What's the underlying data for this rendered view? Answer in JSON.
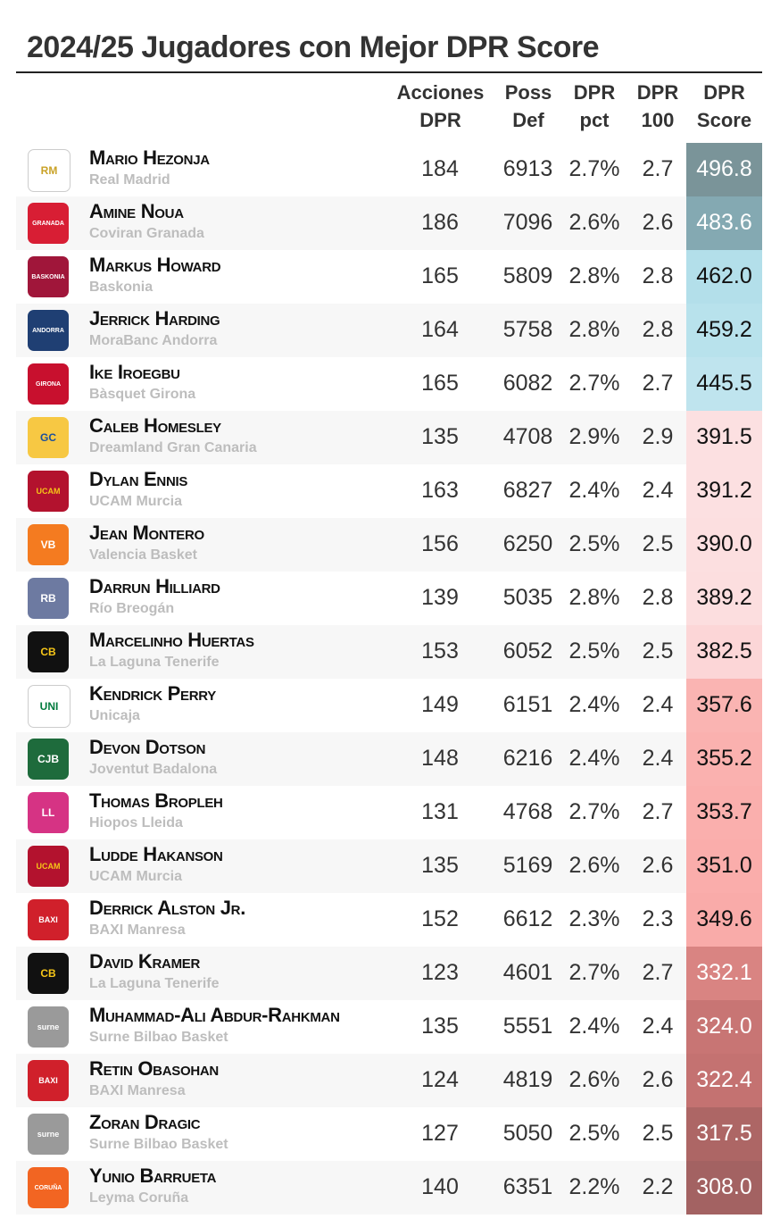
{
  "title": "2024/25 Jugadores con Mejor DPR Score",
  "columns": [
    {
      "line1": "Acciones",
      "line2": "DPR"
    },
    {
      "line1": "Poss",
      "line2": "Def"
    },
    {
      "line1": "DPR",
      "line2": "pct"
    },
    {
      "line1": "DPR",
      "line2": "100"
    },
    {
      "line1": "DPR",
      "line2": "Score"
    }
  ],
  "rows": [
    {
      "player": "Mario Hezonja",
      "team": "Real Madrid",
      "acciones": "184",
      "poss": "6913",
      "pct": "2.7%",
      "per100": "2.7",
      "score": "496.8",
      "score_bg": "#7a9499",
      "score_fg": "#ffffff",
      "logo_color": "#ffffff",
      "logo_fg": "#c9a227",
      "logo_text": "RM"
    },
    {
      "player": "Amine Noua",
      "team": "Coviran Granada",
      "acciones": "186",
      "poss": "7096",
      "pct": "2.6%",
      "per100": "2.6",
      "score": "483.6",
      "score_bg": "#84a9b2",
      "score_fg": "#ffffff",
      "logo_color": "#d81e34",
      "logo_fg": "#ffffff",
      "logo_text": "GRANADA"
    },
    {
      "player": "Markus Howard",
      "team": "Baskonia",
      "acciones": "165",
      "poss": "5809",
      "pct": "2.8%",
      "per100": "2.8",
      "score": "462.0",
      "score_bg": "#b3dfea",
      "score_fg": "#111111",
      "logo_color": "#a0163a",
      "logo_fg": "#ffffff",
      "logo_text": "BASKONIA"
    },
    {
      "player": "Jerrick Harding",
      "team": "MoraBanc Andorra",
      "acciones": "164",
      "poss": "5758",
      "pct": "2.8%",
      "per100": "2.8",
      "score": "459.2",
      "score_bg": "#b8e2ec",
      "score_fg": "#111111",
      "logo_color": "#1f3f73",
      "logo_fg": "#ffffff",
      "logo_text": "ANDORRA"
    },
    {
      "player": "Ike Iroegbu",
      "team": "Bàsquet Girona",
      "acciones": "165",
      "poss": "6082",
      "pct": "2.7%",
      "per100": "2.7",
      "score": "445.5",
      "score_bg": "#bfe4ee",
      "score_fg": "#111111",
      "logo_color": "#c8102e",
      "logo_fg": "#ffffff",
      "logo_text": "GIRONA"
    },
    {
      "player": "Caleb Homesley",
      "team": "Dreamland Gran Canaria",
      "acciones": "135",
      "poss": "4708",
      "pct": "2.9%",
      "per100": "2.9",
      "score": "391.5",
      "score_bg": "#fce0e1",
      "score_fg": "#111111",
      "logo_color": "#f7c843",
      "logo_fg": "#1b4f9c",
      "logo_text": "GC"
    },
    {
      "player": "Dylan Ennis",
      "team": "UCAM Murcia",
      "acciones": "163",
      "poss": "6827",
      "pct": "2.4%",
      "per100": "2.4",
      "score": "391.2",
      "score_bg": "#fce0e1",
      "score_fg": "#111111",
      "logo_color": "#b3122e",
      "logo_fg": "#f5c518",
      "logo_text": "UCAM"
    },
    {
      "player": "Jean Montero",
      "team": "Valencia Basket",
      "acciones": "156",
      "poss": "6250",
      "pct": "2.5%",
      "per100": "2.5",
      "score": "390.0",
      "score_bg": "#fcdfe0",
      "score_fg": "#111111",
      "logo_color": "#f47b20",
      "logo_fg": "#ffffff",
      "logo_text": "VB"
    },
    {
      "player": "Darrun Hilliard",
      "team": "Río Breogán",
      "acciones": "139",
      "poss": "5035",
      "pct": "2.8%",
      "per100": "2.8",
      "score": "389.2",
      "score_bg": "#fcdedf",
      "score_fg": "#111111",
      "logo_color": "#6d7aa1",
      "logo_fg": "#ffffff",
      "logo_text": "RB"
    },
    {
      "player": "Marcelinho Huertas",
      "team": "La Laguna Tenerife",
      "acciones": "153",
      "poss": "6052",
      "pct": "2.5%",
      "per100": "2.5",
      "score": "382.5",
      "score_bg": "#fcd6d7",
      "score_fg": "#111111",
      "logo_color": "#111111",
      "logo_fg": "#f5c518",
      "logo_text": "CB"
    },
    {
      "player": "Kendrick Perry",
      "team": "Unicaja",
      "acciones": "149",
      "poss": "6151",
      "pct": "2.4%",
      "per100": "2.4",
      "score": "357.6",
      "score_bg": "#fab4b2",
      "score_fg": "#111111",
      "logo_color": "#ffffff",
      "logo_fg": "#007a3d",
      "logo_text": "UNI"
    },
    {
      "player": "Devon Dotson",
      "team": "Joventut Badalona",
      "acciones": "148",
      "poss": "6216",
      "pct": "2.4%",
      "per100": "2.4",
      "score": "355.2",
      "score_bg": "#fab1af",
      "score_fg": "#111111",
      "logo_color": "#1e6b3c",
      "logo_fg": "#ffffff",
      "logo_text": "CJB"
    },
    {
      "player": "Thomas Bropleh",
      "team": "Hiopos Lleida",
      "acciones": "131",
      "poss": "4768",
      "pct": "2.7%",
      "per100": "2.7",
      "score": "353.7",
      "score_bg": "#faafad",
      "score_fg": "#111111",
      "logo_color": "#d63384",
      "logo_fg": "#ffffff",
      "logo_text": "LL"
    },
    {
      "player": "Ludde Hakanson",
      "team": "UCAM Murcia",
      "acciones": "135",
      "poss": "5169",
      "pct": "2.6%",
      "per100": "2.6",
      "score": "351.0",
      "score_bg": "#faadab",
      "score_fg": "#111111",
      "logo_color": "#b3122e",
      "logo_fg": "#f5c518",
      "logo_text": "UCAM"
    },
    {
      "player": "Derrick Alston Jr.",
      "team": "BAXI Manresa",
      "acciones": "152",
      "poss": "6612",
      "pct": "2.3%",
      "per100": "2.3",
      "score": "349.6",
      "score_bg": "#f9aba9",
      "score_fg": "#111111",
      "logo_color": "#d0202b",
      "logo_fg": "#ffffff",
      "logo_text": "BAXI"
    },
    {
      "player": "David Kramer",
      "team": "La Laguna Tenerife",
      "acciones": "123",
      "poss": "4601",
      "pct": "2.7%",
      "per100": "2.7",
      "score": "332.1",
      "score_bg": "#d98482",
      "score_fg": "#ffffff",
      "logo_color": "#111111",
      "logo_fg": "#f5c518",
      "logo_text": "CB"
    },
    {
      "player": "Muhammad-Ali Abdur-Rahkman",
      "team": "Surne Bilbao Basket",
      "acciones": "135",
      "poss": "5551",
      "pct": "2.4%",
      "per100": "2.4",
      "score": "324.0",
      "score_bg": "#c87574",
      "score_fg": "#ffffff",
      "logo_color": "#9a9a9a",
      "logo_fg": "#ffffff",
      "logo_text": "surne"
    },
    {
      "player": "Retin Obasohan",
      "team": "BAXI Manresa",
      "acciones": "124",
      "poss": "4819",
      "pct": "2.6%",
      "per100": "2.6",
      "score": "322.4",
      "score_bg": "#c47271",
      "score_fg": "#ffffff",
      "logo_color": "#d0202b",
      "logo_fg": "#ffffff",
      "logo_text": "BAXI"
    },
    {
      "player": "Zoran Dragic",
      "team": "Surne Bilbao Basket",
      "acciones": "127",
      "poss": "5050",
      "pct": "2.5%",
      "per100": "2.5",
      "score": "317.5",
      "score_bg": "#ad6665",
      "score_fg": "#ffffff",
      "logo_color": "#9a9a9a",
      "logo_fg": "#ffffff",
      "logo_text": "surne"
    },
    {
      "player": "Yunio Barrueta",
      "team": "Leyma Coruña",
      "acciones": "140",
      "poss": "6351",
      "pct": "2.2%",
      "per100": "2.2",
      "score": "308.0",
      "score_bg": "#a36262",
      "score_fg": "#ffffff",
      "logo_color": "#f26522",
      "logo_fg": "#ffffff",
      "logo_text": "CORUÑA"
    }
  ]
}
